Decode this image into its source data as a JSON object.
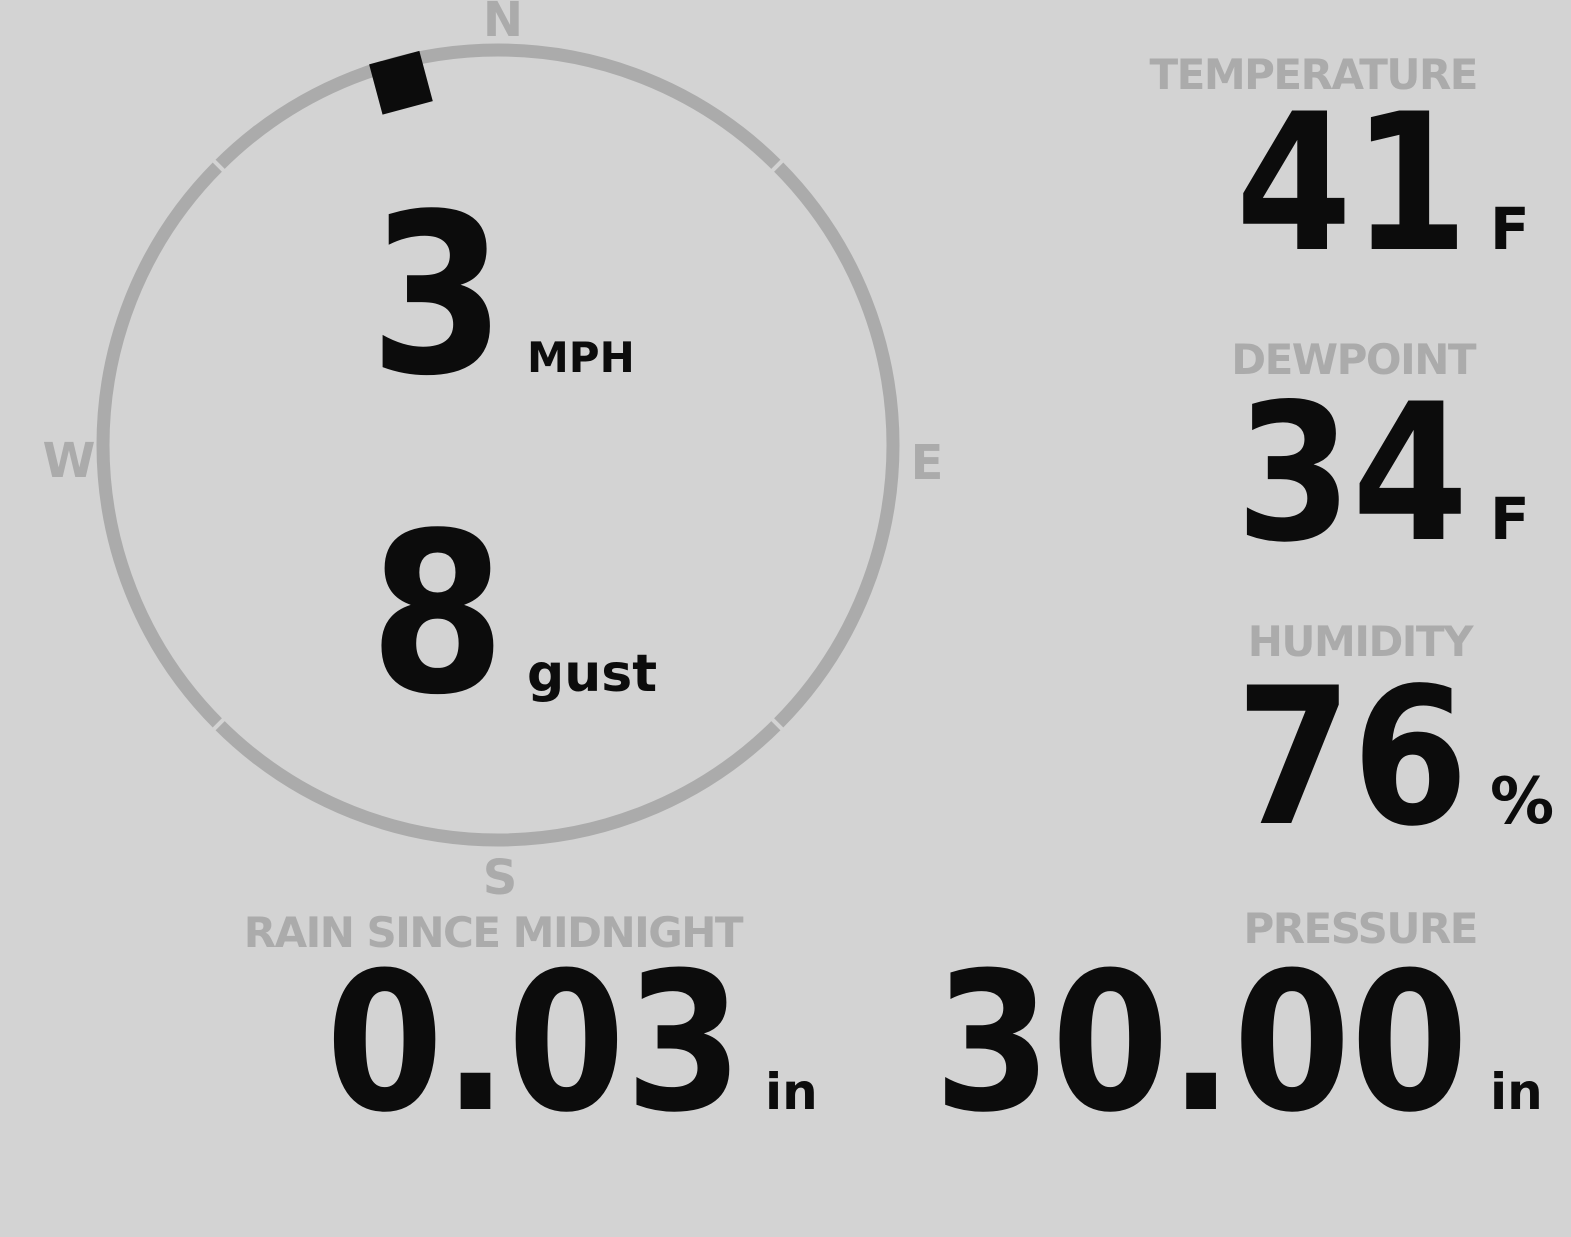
{
  "colors": {
    "background": "#d3d3d3",
    "muted": "#ababab",
    "ink": "#0c0c0c"
  },
  "wind": {
    "compass": {
      "north": "N",
      "east": "E",
      "south": "S",
      "west": "W",
      "direction_degrees": 345
    },
    "speed": {
      "value": "3",
      "unit": "MPH"
    },
    "gust": {
      "value": "8",
      "unit": "gust"
    }
  },
  "temperature": {
    "label": "TEMPERATURE",
    "value": "41",
    "unit": "F"
  },
  "dewpoint": {
    "label": "DEWPOINT",
    "value": "34",
    "unit": "F"
  },
  "humidity": {
    "label": "HUMIDITY",
    "value": "76",
    "unit": "%"
  },
  "rain": {
    "label": "RAIN SINCE MIDNIGHT",
    "value": "0.03",
    "unit": "in"
  },
  "pressure": {
    "label": "PRESSURE",
    "value": "30.00",
    "unit": "in"
  }
}
